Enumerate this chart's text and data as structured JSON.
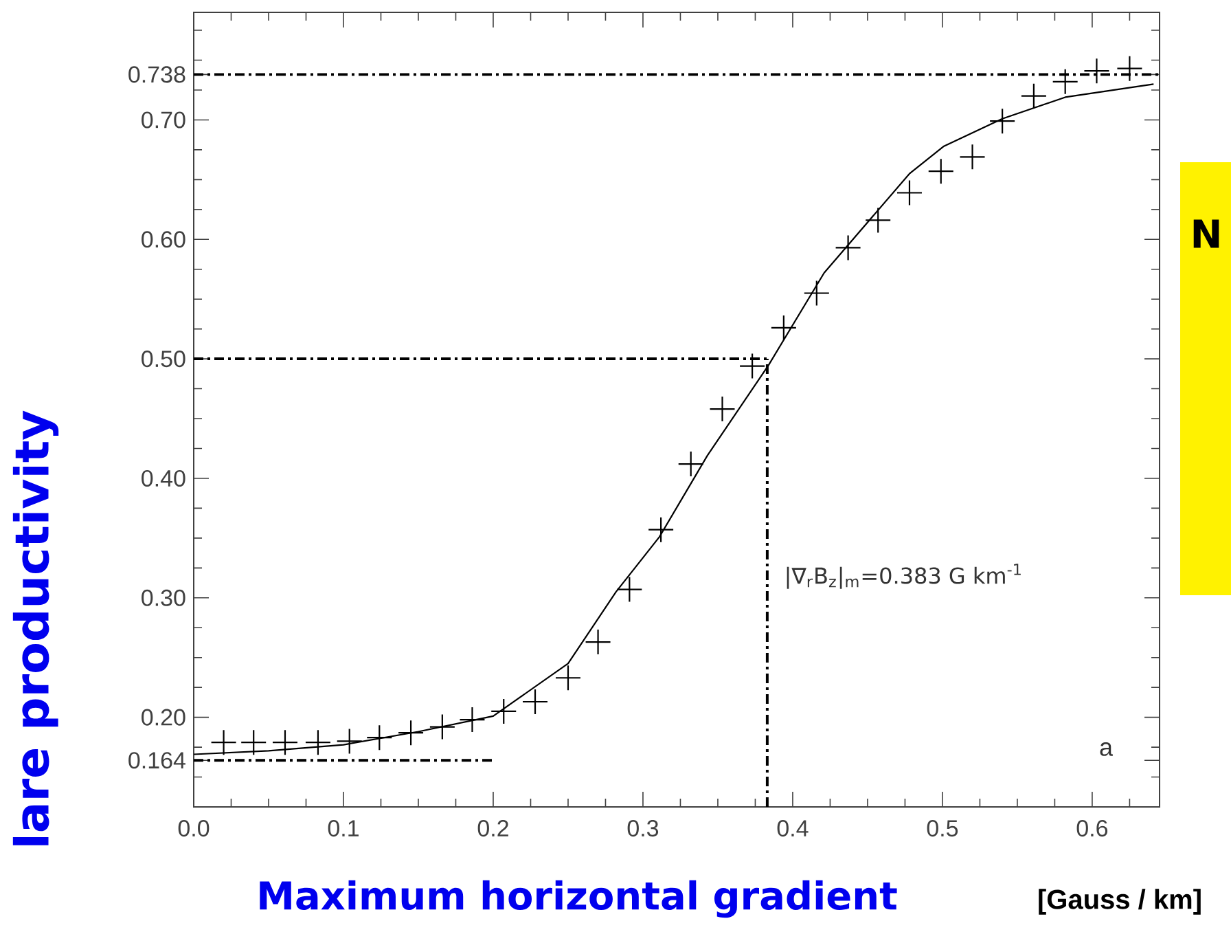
{
  "chart_data": {
    "type": "scatter",
    "xlabel": "Maximum horizontal gradient",
    "ylabel": "lare  productivity",
    "xlim": [
      0,
      0.645
    ],
    "ylim": [
      0.125,
      0.79
    ],
    "xticks": [
      {
        "value": 0,
        "label": "0.0"
      },
      {
        "value": 0.025,
        "label": null
      },
      {
        "value": 0.05,
        "label": null
      },
      {
        "value": 0.075,
        "label": null
      },
      {
        "value": 0.1,
        "label": "0.1"
      },
      {
        "value": 0.125,
        "label": null
      },
      {
        "value": 0.15,
        "label": null
      },
      {
        "value": 0.175,
        "label": null
      },
      {
        "value": 0.2,
        "label": "0.2"
      },
      {
        "value": 0.225,
        "label": null
      },
      {
        "value": 0.25,
        "label": null
      },
      {
        "value": 0.275,
        "label": null
      },
      {
        "value": 0.3,
        "label": "0.3"
      },
      {
        "value": 0.325,
        "label": null
      },
      {
        "value": 0.35,
        "label": null
      },
      {
        "value": 0.375,
        "label": null
      },
      {
        "value": 0.4,
        "label": "0.4"
      },
      {
        "value": 0.425,
        "label": null
      },
      {
        "value": 0.45,
        "label": null
      },
      {
        "value": 0.475,
        "label": null
      },
      {
        "value": 0.5,
        "label": "0.5"
      },
      {
        "value": 0.525,
        "label": null
      },
      {
        "value": 0.55,
        "label": null
      },
      {
        "value": 0.575,
        "label": null
      },
      {
        "value": 0.6,
        "label": "0.6"
      },
      {
        "value": 0.625,
        "label": null
      }
    ],
    "yticks": [
      {
        "value": 0.15,
        "label": null
      },
      {
        "value": 0.164,
        "label": "0.164"
      },
      {
        "value": 0.175,
        "label": null
      },
      {
        "value": 0.2,
        "label": "0.20"
      },
      {
        "value": 0.225,
        "label": null
      },
      {
        "value": 0.25,
        "label": null
      },
      {
        "value": 0.275,
        "label": null
      },
      {
        "value": 0.3,
        "label": "0.30"
      },
      {
        "value": 0.325,
        "label": null
      },
      {
        "value": 0.35,
        "label": null
      },
      {
        "value": 0.375,
        "label": null
      },
      {
        "value": 0.4,
        "label": "0.40"
      },
      {
        "value": 0.425,
        "label": null
      },
      {
        "value": 0.45,
        "label": null
      },
      {
        "value": 0.475,
        "label": null
      },
      {
        "value": 0.5,
        "label": "0.50"
      },
      {
        "value": 0.525,
        "label": null
      },
      {
        "value": 0.55,
        "label": null
      },
      {
        "value": 0.575,
        "label": null
      },
      {
        "value": 0.6,
        "label": "0.60"
      },
      {
        "value": 0.625,
        "label": null
      },
      {
        "value": 0.65,
        "label": null
      },
      {
        "value": 0.675,
        "label": null
      },
      {
        "value": 0.7,
        "label": "0.70"
      },
      {
        "value": 0.725,
        "label": null
      },
      {
        "value": 0.738,
        "label": "0.738"
      },
      {
        "value": 0.75,
        "label": null
      },
      {
        "value": 0.775,
        "label": null
      }
    ],
    "series": [
      {
        "type": "scatter",
        "marker": "cross",
        "color": "#000000",
        "x": [
          0.02,
          0.04,
          0.061,
          0.083,
          0.104,
          0.124,
          0.145,
          0.166,
          0.186,
          0.207,
          0.228,
          0.25,
          0.27,
          0.291,
          0.312,
          0.332,
          0.353,
          0.373,
          0.394,
          0.416,
          0.437,
          0.457,
          0.478,
          0.499,
          0.52,
          0.54,
          0.561,
          0.582,
          0.603,
          0.625
        ],
        "values": [
          0.179,
          0.179,
          0.179,
          0.179,
          0.18,
          0.183,
          0.187,
          0.192,
          0.198,
          0.205,
          0.213,
          0.233,
          0.263,
          0.307,
          0.357,
          0.412,
          0.458,
          0.494,
          0.526,
          0.555,
          0.593,
          0.616,
          0.639,
          0.657,
          0.669,
          0.699,
          0.72,
          0.732,
          0.741,
          0.743
        ]
      },
      {
        "type": "line",
        "line_style": "solid",
        "color": "#000000",
        "x": [
          0,
          0.05,
          0.1,
          0.15,
          0.2,
          0.25,
          0.282,
          0.311,
          0.343,
          0.384,
          0.421,
          0.478,
          0.501,
          0.54,
          0.582,
          0.641
        ],
        "values": [
          0.169,
          0.172,
          0.177,
          0.188,
          0.201,
          0.245,
          0.305,
          0.351,
          0.419,
          0.495,
          0.572,
          0.655,
          0.678,
          0.701,
          0.719,
          0.73
        ]
      },
      {
        "type": "line",
        "line_style": "dashed",
        "color": "#000000",
        "x": [
          0,
          0.645
        ],
        "values": [
          0.738,
          0.738
        ]
      },
      {
        "type": "line",
        "line_style": "dashed",
        "color": "#000000",
        "x": [
          0,
          0.383
        ],
        "values": [
          0.5,
          0.5
        ]
      },
      {
        "type": "line",
        "line_style": "dashed",
        "color": "#000000",
        "x": [
          0,
          0.2
        ],
        "values": [
          0.164,
          0.164
        ]
      },
      {
        "type": "line",
        "line_style": "dashed",
        "color": "#000000",
        "x": [
          0.383,
          0.383
        ],
        "values": [
          0.125,
          0.5
        ]
      }
    ],
    "annotations": [
      {
        "text": "|∇$_{r}$B$_{z}$|$_{m}$=0.383 G km$^{-1}$",
        "x": 0.383,
        "y": 0.318
      },
      "a",
      "[Gauss / km]",
      "N"
    ]
  }
}
